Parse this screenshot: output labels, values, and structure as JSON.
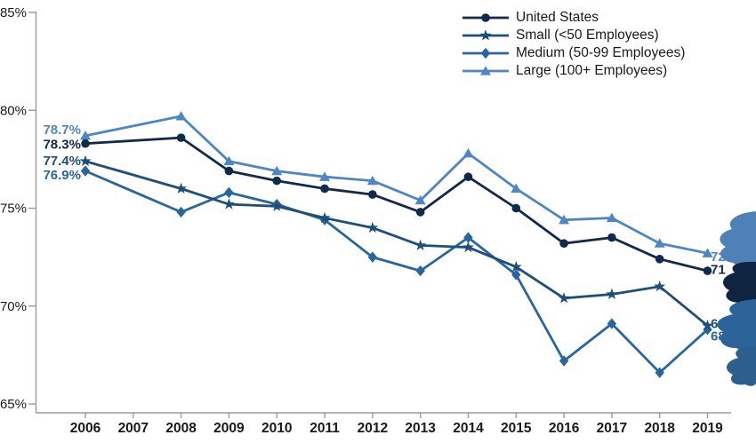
{
  "chart_data": {
    "type": "line",
    "title": "",
    "xlabel": "",
    "ylabel": "",
    "ylim": [
      65,
      85
    ],
    "y_tick_values": [
      65,
      70,
      75,
      80,
      85
    ],
    "y_tick_labels": [
      "65%",
      "70%",
      "75%",
      "80%",
      "85%"
    ],
    "x_axis_years": [
      "2006",
      "2007",
      "2008",
      "2009",
      "2010",
      "2011",
      "2012",
      "2013",
      "2014",
      "2015",
      "2016",
      "2017",
      "2018",
      "2019"
    ],
    "data_years": [
      2006,
      2008,
      2009,
      2010,
      2011,
      2012,
      2013,
      2014,
      2015,
      2016,
      2017,
      2018,
      2019
    ],
    "note": "No data point is plotted for 2007; lines connect 2006 directly to 2008",
    "grid": false,
    "legend_position": "top-right",
    "axis_color": "#9b9b9b",
    "text_color": "#1a1a1a",
    "series": [
      {
        "name": "United States",
        "marker": "circle",
        "color": "#11294b",
        "values": [
          78.3,
          78.6,
          76.9,
          76.4,
          76.0,
          75.7,
          74.8,
          76.6,
          75.0,
          73.2,
          73.5,
          72.4,
          71.8
        ],
        "start_label": "78.3%",
        "end_label_visible": "71",
        "end_value": 71.8
      },
      {
        "name": "Small (<50 Employees)",
        "marker": "star",
        "color": "#1f4e79",
        "values": [
          77.4,
          76.0,
          75.2,
          75.1,
          74.5,
          74.0,
          73.1,
          73.0,
          72.0,
          70.4,
          70.6,
          71.0,
          69.0
        ],
        "start_label": "77.4%",
        "end_label_visible": "69",
        "end_value": 69.0
      },
      {
        "name": "Medium (50-99 Employees)",
        "marker": "diamond",
        "color": "#2a669e",
        "values": [
          76.9,
          74.8,
          75.8,
          75.2,
          74.4,
          72.5,
          71.8,
          73.5,
          71.6,
          67.2,
          69.1,
          66.6,
          68.8
        ],
        "start_label": "76.9%",
        "end_label_visible": "68",
        "end_value": 68.8
      },
      {
        "name": "Large (100+ Employees)",
        "marker": "triangle",
        "color": "#4d86c2",
        "values": [
          78.7,
          79.7,
          77.4,
          76.9,
          76.6,
          76.4,
          75.4,
          77.8,
          76.0,
          74.4,
          74.5,
          73.2,
          72.7
        ],
        "start_label": "78.7%",
        "end_label_visible": "72",
        "end_value": 72.7
      }
    ],
    "decoration": {
      "right_edge_blob_colors": [
        "#4e82b6",
        "#0e2440",
        "#2c6399",
        "#2d5f8e"
      ]
    }
  }
}
